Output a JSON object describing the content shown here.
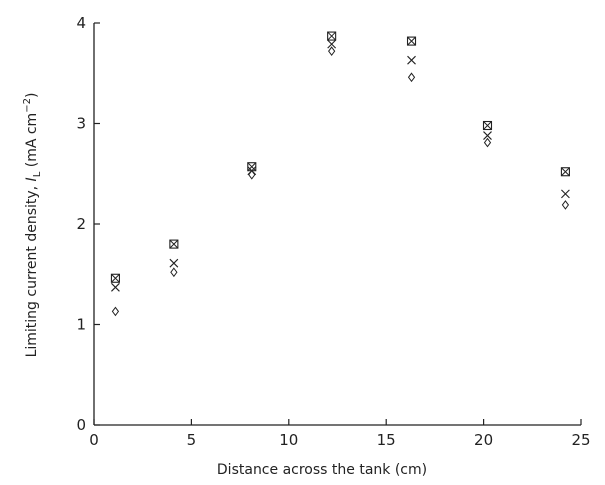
{
  "chart_data": {
    "type": "scatter",
    "title": "",
    "xlabel": "Distance across the tank (cm)",
    "ylabel": {
      "main": "Limiting current density, ",
      "symbol": "I",
      "subscript": "L",
      "unit_open": " (mA cm",
      "exponent": "−2",
      "unit_close": ")"
    },
    "xlim": [
      0,
      25
    ],
    "ylim": [
      0,
      4
    ],
    "xticks": [
      "0",
      "5",
      "10",
      "15",
      "20",
      "25"
    ],
    "yticks": [
      "0",
      "1",
      "2",
      "3",
      "4"
    ],
    "grid": false,
    "legend": "none",
    "series": [
      {
        "marker": "boxed-x",
        "x": [
          1.1,
          4.1,
          8.1,
          12.2,
          16.3,
          20.2,
          24.2
        ],
        "y": [
          1.46,
          1.8,
          2.57,
          3.87,
          3.82,
          2.98,
          2.52
        ]
      },
      {
        "marker": "x",
        "x": [
          1.1,
          4.1,
          8.1,
          12.2,
          16.3,
          20.2,
          24.2
        ],
        "y": [
          1.37,
          1.61,
          2.53,
          3.79,
          3.63,
          2.88,
          2.3
        ]
      },
      {
        "marker": "diamond",
        "x": [
          1.1,
          4.1,
          8.1,
          12.2,
          16.3,
          20.2,
          24.2
        ],
        "y": [
          1.13,
          1.52,
          2.49,
          3.72,
          3.46,
          2.81,
          2.19
        ]
      }
    ]
  }
}
